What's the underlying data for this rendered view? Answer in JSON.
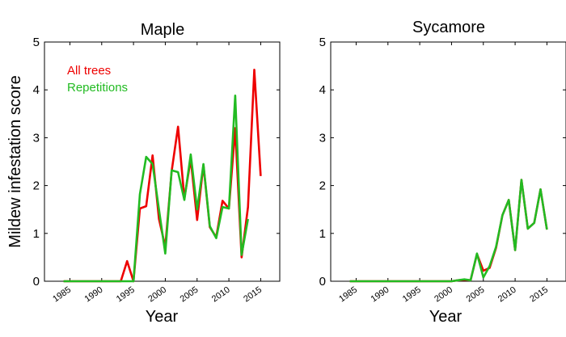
{
  "figure": {
    "ylabel": "Mildew infestation score",
    "colors": {
      "all_trees": "#ee0000",
      "repetitions": "#22bb22"
    }
  },
  "chart_data": [
    {
      "type": "line",
      "title": "Maple",
      "xlabel": "Year",
      "ylabel": "Mildew infestation score",
      "xlim": [
        1981,
        2018
      ],
      "ylim": [
        0,
        5
      ],
      "xticks": [
        "1985",
        "1990",
        "1995",
        "2000",
        "2005",
        "2010",
        "2015"
      ],
      "yticks": [
        "0",
        "1",
        "2",
        "3",
        "4",
        "5"
      ],
      "legend": {
        "position": "top-left"
      },
      "series": [
        {
          "name": "All trees",
          "color": "#ee0000",
          "x": [
            1984,
            1985,
            1986,
            1987,
            1988,
            1989,
            1990,
            1991,
            1992,
            1993,
            1994,
            1995,
            1996,
            1997,
            1998,
            1999,
            2000,
            2001,
            2002,
            2003,
            2004,
            2005,
            2006,
            2007,
            2008,
            2009,
            2010,
            2011,
            2012,
            2013,
            2014,
            2015
          ],
          "y": [
            0,
            0,
            0,
            0,
            0,
            0,
            0,
            0,
            0,
            0,
            0.42,
            0,
            1.52,
            1.57,
            2.63,
            1.3,
            0.72,
            2.3,
            3.23,
            1.73,
            2.55,
            1.28,
            2.43,
            1.13,
            0.92,
            1.68,
            1.52,
            3.2,
            0.5,
            1.55,
            4.42,
            2.2
          ]
        },
        {
          "name": "Repetitions",
          "color": "#22bb22",
          "x": [
            1984,
            1985,
            1986,
            1987,
            1988,
            1989,
            1990,
            1991,
            1992,
            1993,
            1994,
            1995,
            1996,
            1997,
            1998,
            1999,
            2000,
            2001,
            2002,
            2003,
            2004,
            2005,
            2006,
            2007,
            2008,
            2009,
            2010,
            2011,
            2012,
            2013
          ],
          "y": [
            0,
            0,
            0,
            0,
            0,
            0,
            0,
            0,
            0,
            0,
            0,
            0,
            1.82,
            2.6,
            2.45,
            1.5,
            0.58,
            2.32,
            2.28,
            1.7,
            2.65,
            1.5,
            2.45,
            1.15,
            0.9,
            1.55,
            1.52,
            3.88,
            0.55,
            1.3
          ]
        }
      ]
    },
    {
      "type": "line",
      "title": "Sycamore",
      "xlabel": "Year",
      "ylabel": "",
      "xlim": [
        1981,
        2018
      ],
      "ylim": [
        0,
        5
      ],
      "xticks": [
        "1985",
        "1990",
        "1995",
        "2000",
        "2005",
        "2010",
        "2015"
      ],
      "yticks": [
        "0",
        "1",
        "2",
        "3",
        "4",
        "5"
      ],
      "series": [
        {
          "name": "All trees",
          "color": "#ee0000",
          "x": [
            1984,
            1985,
            1986,
            1987,
            1988,
            1989,
            1990,
            1991,
            1992,
            1993,
            1994,
            1995,
            1996,
            1997,
            1998,
            1999,
            2000,
            2001,
            2002,
            2003,
            2004,
            2005,
            2006,
            2007,
            2008,
            2009,
            2010,
            2011,
            2012,
            2013,
            2014,
            2015
          ],
          "y": [
            0,
            0,
            0,
            0,
            0,
            0,
            0,
            0,
            0,
            0,
            0,
            0,
            0,
            0,
            0,
            0,
            0,
            0.02,
            0.03,
            0.02,
            0.57,
            0.22,
            0.28,
            0.7,
            1.38,
            1.7,
            0.65,
            2.12,
            1.1,
            1.22,
            1.92,
            1.08
          ]
        },
        {
          "name": "Repetitions",
          "color": "#22bb22",
          "x": [
            1984,
            1985,
            1986,
            1987,
            1988,
            1989,
            1990,
            1991,
            1992,
            1993,
            1994,
            1995,
            1996,
            1997,
            1998,
            1999,
            2000,
            2001,
            2002,
            2003,
            2004,
            2005,
            2006,
            2007,
            2008,
            2009,
            2010,
            2011,
            2012,
            2013,
            2014,
            2015
          ],
          "y": [
            0,
            0,
            0,
            0,
            0,
            0,
            0,
            0,
            0,
            0,
            0,
            0,
            0,
            0,
            0,
            0,
            0,
            0.02,
            0.04,
            0.02,
            0.58,
            0.08,
            0.32,
            0.72,
            1.38,
            1.7,
            0.65,
            2.12,
            1.1,
            1.22,
            1.92,
            1.08
          ]
        }
      ]
    }
  ]
}
